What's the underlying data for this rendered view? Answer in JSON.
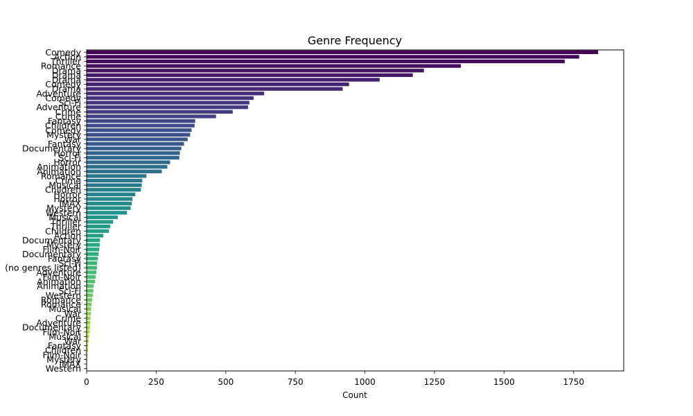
{
  "chart_data": {
    "type": "bar",
    "orientation": "horizontal",
    "title": "Genre Frequency",
    "xlabel": "Count",
    "ylabel": "",
    "xlim": [
      0,
      1930
    ],
    "xticks": [
      0,
      250,
      500,
      750,
      1000,
      1250,
      1500,
      1750
    ],
    "colormap": "viridis",
    "grid": false,
    "categories": [
      "Comedy",
      "Action",
      "Thriller",
      "Romance",
      "Drama",
      "Drama",
      "Drama",
      "Comedy",
      "Drama",
      "Adventure",
      "Comedy",
      "Sci-Fi",
      "Adventure",
      "Crime",
      "Crime",
      "Fantasy",
      "Children",
      "Comedy",
      "Mystery",
      "War",
      "Fantasy",
      "Documentary",
      "Horror",
      "Sci-Fi",
      "Horror",
      "Animation",
      "Animation",
      "Romance",
      "Crime",
      "Musical",
      "Children",
      "Horror",
      "Horror",
      "IMAX",
      "Mystery",
      "Western",
      "Musical",
      "Thriller",
      "Thriller",
      "Children",
      "Action",
      "Documentary",
      "Mystery",
      "Film-Noir",
      "Documentary",
      "Fantasy",
      "Sci-Fi",
      "(no genres listed)",
      "Adventure",
      "Film-Noir",
      "Animation",
      "Animation",
      "Sci-Fi",
      "Western",
      "Romance",
      "Romance",
      "Musical",
      "War",
      "Crime",
      "Adventure",
      "Documentary",
      "Film-Noir",
      "Musical",
      "War",
      "Fantasy",
      "Children",
      "Film-Noir",
      "Mystery",
      "IMAX",
      "Western"
    ],
    "values": [
      1838,
      1770,
      1718,
      1345,
      1212,
      1172,
      1053,
      943,
      920,
      638,
      600,
      585,
      580,
      525,
      465,
      390,
      388,
      377,
      372,
      363,
      350,
      340,
      335,
      333,
      300,
      290,
      270,
      215,
      200,
      198,
      195,
      175,
      165,
      162,
      158,
      145,
      112,
      95,
      85,
      80,
      60,
      48,
      47,
      45,
      43,
      40,
      38,
      37,
      35,
      32,
      30,
      25,
      24,
      22,
      20,
      18,
      16,
      15,
      14,
      13,
      12,
      11,
      9,
      8,
      6,
      5,
      3,
      2,
      1,
      1
    ]
  }
}
